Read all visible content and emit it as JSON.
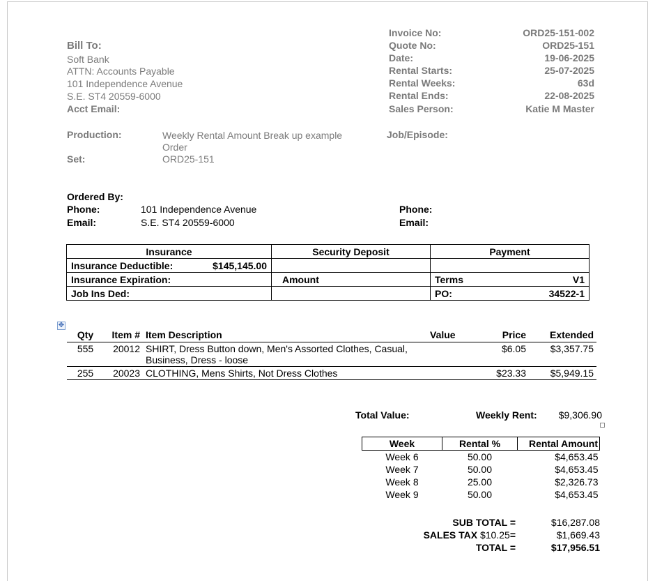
{
  "bill_to": {
    "label": "Bill To:",
    "name": "Soft Bank",
    "attn": "ATTN: Accounts Payable",
    "address1": "101 Independence Avenue",
    "address2": "S.E. ST4 20559-6000",
    "acct_email_label": "Acct Email:"
  },
  "invoice_info": [
    {
      "label": "Invoice No:",
      "value": "ORD25-151-002"
    },
    {
      "label": "Quote No:",
      "value": "ORD25-151"
    },
    {
      "label": "Date:",
      "value": "19-06-2025"
    },
    {
      "label": "Rental Starts:",
      "value": "25-07-2025"
    },
    {
      "label": "Rental Weeks:",
      "value": "63d"
    },
    {
      "label": "Rental Ends:",
      "value": "22-08-2025"
    },
    {
      "label": "Sales Person:",
      "value": "Katie M Master"
    }
  ],
  "production": {
    "label": "Production:",
    "value_line1": "Weekly Rental  Amount  Break up example",
    "value_line2": "Order",
    "set_label": "Set:",
    "set_value": "ORD25-151",
    "job_label": "Job/Episode:"
  },
  "ordered_by": {
    "label": "Ordered By:",
    "phone_label": "Phone:",
    "phone_value": "101 Independence Avenue",
    "email_label": "Email:",
    "email_value": "S.E. ST4 20559-6000",
    "phone2_label": "Phone:",
    "email2_label": "Email:"
  },
  "insurance_table": {
    "headers": [
      "Insurance",
      "Security Deposit",
      "Payment"
    ],
    "deductible_label": "Insurance Deductible:",
    "deductible_value": "$145,145.00",
    "expiration_label": "Insurance Expiration:",
    "amount_label": "Amount",
    "terms_label": "Terms",
    "terms_value": "V1",
    "job_ins_label": "Job Ins Ded:",
    "po_label": "PO:",
    "po_value": "34522-1"
  },
  "items": {
    "headers": {
      "qty": "Qty",
      "item": "Item #",
      "desc": "Item Description",
      "value": "Value",
      "price": "Price",
      "extended": "Extended"
    },
    "rows": [
      {
        "qty": "555",
        "item": "20012",
        "desc_line1": "SHIRT, Dress Button down, Men's Assorted Clothes, Casual,",
        "desc_line2": "Business, Dress - loose",
        "value": "",
        "price": "$6.05",
        "extended": "$3,357.75"
      },
      {
        "qty": "255",
        "item": "20023",
        "desc_line1": "CLOTHING, Mens Shirts, Not Dress Clothes",
        "desc_line2": "",
        "value": "",
        "price": "$23.33",
        "extended": "$5,949.15"
      }
    ]
  },
  "summary": {
    "total_value_label": "Total Value:",
    "weekly_rent_label": "Weekly Rent:",
    "weekly_rent_value": "$9,306.90"
  },
  "weeks": {
    "headers": [
      "Week",
      "Rental %",
      "Rental Amount"
    ],
    "rows": [
      {
        "week": "Week 6",
        "pct": "50.00",
        "amount": "$4,653.45"
      },
      {
        "week": "Week 7",
        "pct": "50.00",
        "amount": "$4,653.45"
      },
      {
        "week": "Week 8",
        "pct": "25.00",
        "amount": "$2,326.73"
      },
      {
        "week": "Week 9",
        "pct": "50.00",
        "amount": "$4,653.45"
      }
    ]
  },
  "totals": {
    "subtotal_label": "SUB TOTAL =",
    "subtotal_value": "$16,287.08",
    "tax_label": "SALES TAX",
    "tax_rate": "$10.25",
    "tax_eq": "=",
    "tax_value": "$1,669.43",
    "total_label": "TOTAL =",
    "total_value": "$17,956.51"
  }
}
